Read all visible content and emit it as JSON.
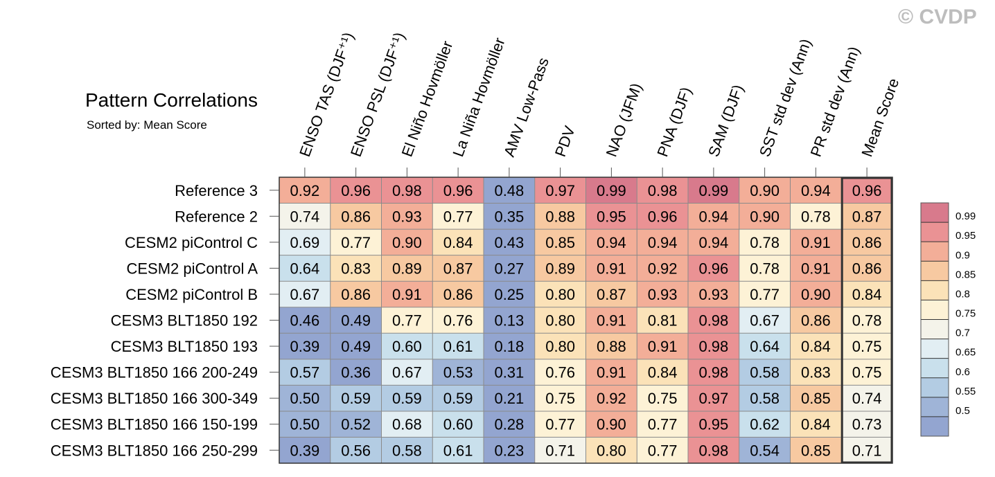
{
  "watermark": "© CVDP",
  "chart_data": {
    "type": "heatmap",
    "title": "Pattern Correlations",
    "subtitle": "Sorted by: Mean Score",
    "columns": [
      "ENSO TAS (DJF⁺¹)",
      "ENSO PSL (DJF⁺¹)",
      "El Niño Hovmöller",
      "La Niña Hovmöller",
      "AMV Low-Pass",
      "PDV",
      "NAO (JFM)",
      "PNA (DJF)",
      "SAM (DJF)",
      "SST std dev (Ann)",
      "PR std dev (Ann)",
      "Mean Score"
    ],
    "rows": [
      "Reference 3",
      "Reference 2",
      "CESM2 piControl C",
      "CESM2 piControl A",
      "CESM2 piControl B",
      "CESM3 BLT1850 192",
      "CESM3 BLT1850 193",
      "CESM3 BLT1850 166 200-249",
      "CESM3 BLT1850 166 300-349",
      "CESM3 BLT1850 166 150-199",
      "CESM3 BLT1850 166 250-299"
    ],
    "values": [
      [
        "0.92",
        "0.96",
        "0.98",
        "0.96",
        "0.48",
        "0.97",
        "0.99",
        "0.98",
        "0.99",
        "0.90",
        "0.94",
        "0.96"
      ],
      [
        "0.74",
        "0.86",
        "0.93",
        "0.77",
        "0.35",
        "0.88",
        "0.95",
        "0.96",
        "0.94",
        "0.90",
        "0.78",
        "0.87"
      ],
      [
        "0.69",
        "0.77",
        "0.90",
        "0.84",
        "0.43",
        "0.85",
        "0.94",
        "0.94",
        "0.94",
        "0.78",
        "0.91",
        "0.86"
      ],
      [
        "0.64",
        "0.83",
        "0.89",
        "0.87",
        "0.27",
        "0.89",
        "0.91",
        "0.92",
        "0.96",
        "0.78",
        "0.91",
        "0.86"
      ],
      [
        "0.67",
        "0.86",
        "0.91",
        "0.86",
        "0.25",
        "0.80",
        "0.87",
        "0.93",
        "0.93",
        "0.77",
        "0.90",
        "0.84"
      ],
      [
        "0.46",
        "0.49",
        "0.77",
        "0.76",
        "0.13",
        "0.80",
        "0.91",
        "0.81",
        "0.98",
        "0.67",
        "0.86",
        "0.78"
      ],
      [
        "0.39",
        "0.49",
        "0.60",
        "0.61",
        "0.18",
        "0.80",
        "0.88",
        "0.91",
        "0.98",
        "0.64",
        "0.84",
        "0.75"
      ],
      [
        "0.57",
        "0.36",
        "0.67",
        "0.53",
        "0.31",
        "0.76",
        "0.91",
        "0.84",
        "0.98",
        "0.58",
        "0.83",
        "0.75"
      ],
      [
        "0.50",
        "0.59",
        "0.59",
        "0.59",
        "0.21",
        "0.75",
        "0.92",
        "0.75",
        "0.97",
        "0.58",
        "0.85",
        "0.74"
      ],
      [
        "0.50",
        "0.52",
        "0.68",
        "0.60",
        "0.28",
        "0.77",
        "0.90",
        "0.77",
        "0.95",
        "0.62",
        "0.84",
        "0.73"
      ],
      [
        "0.39",
        "0.56",
        "0.58",
        "0.61",
        "0.23",
        "0.71",
        "0.80",
        "0.77",
        "0.98",
        "0.54",
        "0.85",
        "0.71"
      ]
    ],
    "highlighted_column": "Mean Score",
    "colorbar": {
      "levels": [
        "0.99",
        "0.95",
        "0.9",
        "0.85",
        "0.8",
        "0.75",
        "0.7",
        "0.65",
        "0.6",
        "0.55",
        "0.5"
      ],
      "colors": [
        "#d87a8c",
        "#ea9294",
        "#f3ae98",
        "#f7c9a1",
        "#fbe2b8",
        "#fdf2d6",
        "#f4f3ea",
        "#e2eef3",
        "#c9e0ec",
        "#b3cce3",
        "#9fb4d7",
        "#93a5d0"
      ]
    }
  }
}
